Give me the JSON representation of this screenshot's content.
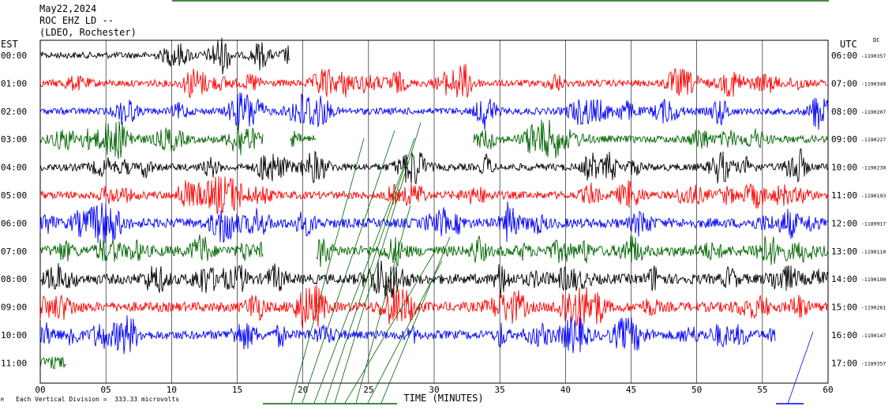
{
  "header": {
    "date": "May22,2024",
    "station": "ROC EHZ LD --",
    "network": "(LDEO, Rochester)",
    "left_zone": "EST",
    "right_zone": "UTC",
    "dc_label": "DC"
  },
  "footer": {
    "scale_note": "Each Vertical Division =  333.33 microvolts",
    "corner_mark": "M"
  },
  "chart_data": {
    "type": "line",
    "title": "ROC EHZ LD -- (LDEO, Rochester) May22,2024",
    "xlabel": "TIME (MINUTES)",
    "x_range": [
      0,
      60
    ],
    "x_ticks": [
      "00",
      "05",
      "10",
      "15",
      "20",
      "25",
      "30",
      "35",
      "40",
      "45",
      "50",
      "55",
      "60"
    ],
    "grid": "vertical lines every 5 minutes",
    "trace_colors": [
      "#000000",
      "#ff0000",
      "#0000ff",
      "#006400"
    ],
    "rows": [
      {
        "est": "00:00",
        "utc": "06:00",
        "dc": "1190357",
        "color": "#000000",
        "end_min": 19,
        "activity": 0.25
      },
      {
        "est": "01:00",
        "utc": "07:00",
        "dc": "1190349",
        "color": "#ff0000",
        "end_min": 60,
        "activity": 0.3
      },
      {
        "est": "02:00",
        "utc": "08:00",
        "dc": "1190207",
        "color": "#0000ff",
        "end_min": 60,
        "activity": 0.3
      },
      {
        "est": "03:00",
        "utc": "09:00",
        "dc": "1190227",
        "color": "#006400",
        "end_min": 60,
        "activity": 0.35,
        "gaps": [
          [
            17,
            19
          ],
          [
            21,
            33
          ]
        ]
      },
      {
        "est": "04:00",
        "utc": "10:00",
        "dc": "1190230",
        "color": "#000000",
        "end_min": 60,
        "activity": 0.35
      },
      {
        "est": "05:00",
        "utc": "11:00",
        "dc": "1190193",
        "color": "#ff0000",
        "end_min": 60,
        "activity": 0.4
      },
      {
        "est": "06:00",
        "utc": "12:00",
        "dc": "1189917",
        "color": "#0000ff",
        "end_min": 60,
        "activity": 0.6
      },
      {
        "est": "07:00",
        "utc": "13:00",
        "dc": "1190110",
        "color": "#006400",
        "end_min": 60,
        "activity": 0.7,
        "gaps": [
          [
            17,
            21
          ]
        ]
      },
      {
        "est": "08:00",
        "utc": "14:00",
        "dc": "1190190",
        "color": "#000000",
        "end_min": 60,
        "activity": 0.65
      },
      {
        "est": "09:00",
        "utc": "15:00",
        "dc": "1190261",
        "color": "#ff0000",
        "end_min": 60,
        "activity": 0.6
      },
      {
        "est": "10:00",
        "utc": "16:00",
        "dc": "1190147",
        "color": "#0000ff",
        "end_min": 56,
        "activity": 0.5
      },
      {
        "est": "11:00",
        "utc": "17:00",
        "dc": "1189357",
        "color": "#006400",
        "end_min": 2,
        "activity": 0.9
      }
    ]
  }
}
